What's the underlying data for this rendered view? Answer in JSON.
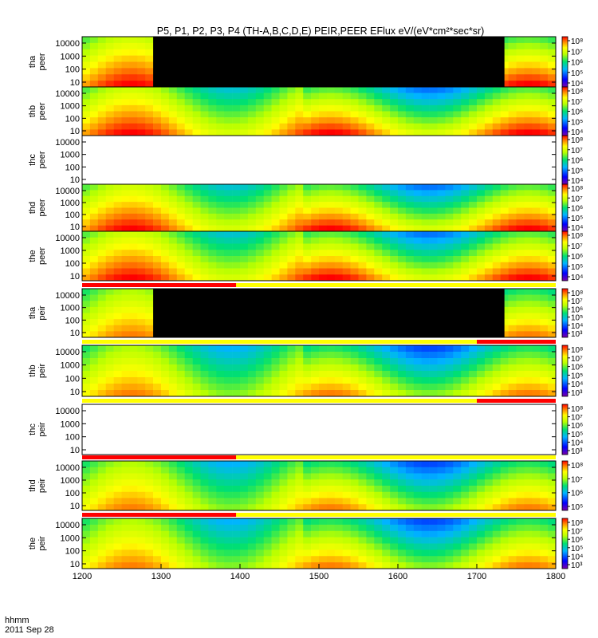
{
  "title": "P5, P1, P2, P3, P4 (TH-A,B,C,D,E) PEIR,PEER EFlux eV/(eV*cm²*sec*sr)",
  "time_axis": {
    "label_line1": "hhmm",
    "label_line2": "2011 Sep 28",
    "ticks": [
      "1200",
      "1300",
      "1400",
      "1500",
      "1600",
      "1700",
      "1800"
    ]
  },
  "chart_data": {
    "type": "heatmap",
    "title": "P5, P1, P2, P3, P4 (TH-A,B,C,D,E) PEIR,PEER EFlux eV/(eV*cm²*sec*sr)",
    "x": {
      "label": "hhmm",
      "date": "2011 Sep 28",
      "range": [
        "1200",
        "1800"
      ],
      "ticks": [
        "1200",
        "1300",
        "1400",
        "1500",
        "1600",
        "1700",
        "1800"
      ]
    },
    "y": {
      "scale": "log",
      "ticks": [
        "10",
        "100",
        "1000",
        "10000"
      ]
    },
    "colorscale": "rainbow",
    "panels": [
      {
        "id": "tha-peer",
        "ylabel": [
          "tha",
          "peer"
        ],
        "cbar_ticks": [
          "10⁸",
          "10⁷",
          "10⁶",
          "10⁵",
          "10⁴"
        ],
        "data_gaps": [
          [
            1290,
            1735
          ]
        ],
        "flag_bar": false
      },
      {
        "id": "thb-peer",
        "ylabel": [
          "thb",
          "peer"
        ],
        "cbar_ticks": [
          "10⁸",
          "10⁷",
          "10⁶",
          "10⁵",
          "10⁴"
        ],
        "data_gaps": [],
        "flag_bar": false
      },
      {
        "id": "thc-peer",
        "ylabel": [
          "thc",
          "peer"
        ],
        "cbar_ticks": [
          "10⁸",
          "10⁷",
          "10⁶",
          "10⁵",
          "10⁴"
        ],
        "data_gaps": [],
        "empty": true,
        "flag_bar": false
      },
      {
        "id": "thd-peer",
        "ylabel": [
          "thd",
          "peer"
        ],
        "cbar_ticks": [
          "10⁸",
          "10⁷",
          "10⁶",
          "10⁵",
          "10⁴"
        ],
        "data_gaps": [],
        "flag_bar": false
      },
      {
        "id": "the-peer",
        "ylabel": [
          "the",
          "peer"
        ],
        "cbar_ticks": [
          "10⁸",
          "10⁷",
          "10⁶",
          "10⁵",
          "10⁴"
        ],
        "data_gaps": [],
        "flag_bar": true
      },
      {
        "id": "tha-peir",
        "ylabel": [
          "tha",
          "peir"
        ],
        "cbar_ticks": [
          "10⁸",
          "10⁷",
          "10⁶",
          "10⁵",
          "10⁴",
          "10³"
        ],
        "data_gaps": [
          [
            1290,
            1735
          ]
        ],
        "flag_bar": true
      },
      {
        "id": "thb-peir",
        "ylabel": [
          "thb",
          "peir"
        ],
        "cbar_ticks": [
          "10⁸",
          "10⁷",
          "10⁶",
          "10⁵",
          "10⁴",
          "10³"
        ],
        "data_gaps": [],
        "flag_bar": true
      },
      {
        "id": "thc-peir",
        "ylabel": [
          "thc",
          "peir"
        ],
        "cbar_ticks": [
          "10⁸",
          "10⁷",
          "10⁶",
          "10⁵",
          "10⁴",
          "10³"
        ],
        "data_gaps": [],
        "empty": true,
        "flag_bar": true
      },
      {
        "id": "thd-peir",
        "ylabel": [
          "thd",
          "peir"
        ],
        "cbar_ticks": [
          "10⁸",
          "10⁷",
          "10⁶",
          "10⁵"
        ],
        "data_gaps": [],
        "flag_bar": true
      },
      {
        "id": "the-peir",
        "ylabel": [
          "the",
          "peir"
        ],
        "cbar_ticks": [
          "10⁸",
          "10⁷",
          "10⁶",
          "10⁵",
          "10⁴",
          "10³"
        ],
        "data_gaps": [],
        "flag_bar": false
      }
    ],
    "flag_bars": [
      {
        "after_panel": "the-peer",
        "red_ranges": [
          [
            1200,
            1395
          ]
        ]
      },
      {
        "after_panel": "tha-peir",
        "red_ranges": [
          [
            1700,
            1800
          ]
        ]
      },
      {
        "after_panel": "thb-peir",
        "red_ranges": [
          [
            1700,
            1800
          ]
        ]
      },
      {
        "after_panel": "thc-peir",
        "red_ranges": [
          [
            1200,
            1395
          ]
        ]
      },
      {
        "after_panel": "thd-peir",
        "red_ranges": [
          [
            1200,
            1395
          ]
        ]
      }
    ]
  }
}
